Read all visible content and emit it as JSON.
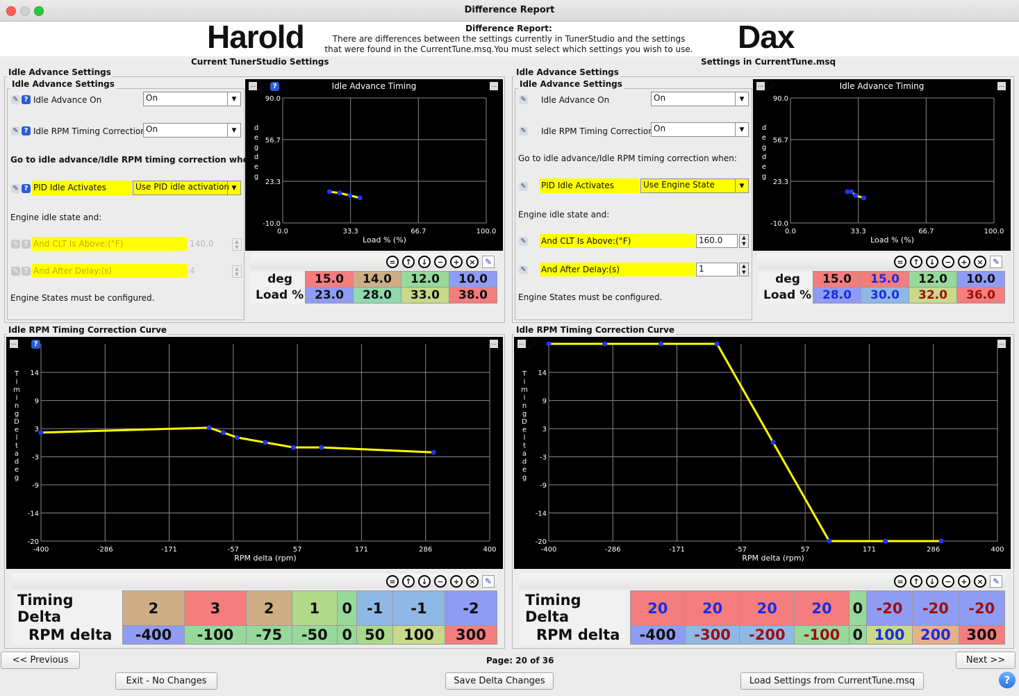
{
  "window": {
    "title": "Difference Report"
  },
  "header": {
    "left_name": "Harold",
    "right_name": "Dax",
    "title": "Difference Report:",
    "line1": "There are differences between the settings currently in TunerStudio and the settings",
    "line2": "that were found in the CurrentTune.msq.You must select which settings you wish to use.",
    "left_caption": "Current TunerStudio Settings",
    "right_caption": "Settings in CurrentTune.msq"
  },
  "left": {
    "outer_group": "Idle Advance Settings",
    "inner_group": "Idle Advance Settings",
    "idle_adv_on_label": "Idle Advance On",
    "idle_adv_on_value": "On",
    "idle_rpm_label": "Idle RPM Timing Correction",
    "idle_rpm_value": "On",
    "goto_label": "Go to idle advance/Idle RPM timing correction when:",
    "pid_label": "PID Idle Activates",
    "pid_value": "Use PID idle activation",
    "engine_idle_label": "Engine idle state and:",
    "clt_label": "And CLT Is Above:(°F)",
    "clt_value": "140.0",
    "delay_label": "And After Delay:(s)",
    "delay_value": "4",
    "must_label": "Engine States must be configured.",
    "chart_title": "Idle Advance Timing",
    "table": {
      "row1_label": "deg",
      "row1": [
        "15.0",
        "14.0",
        "12.0",
        "10.0"
      ],
      "row2_label": "Load %",
      "row2": [
        "23.0",
        "28.0",
        "33.0",
        "38.0"
      ]
    },
    "curve_group": "Idle RPM Timing Correction Curve",
    "curve_table": {
      "row1_label": "Timing Delta",
      "row1": [
        "2",
        "3",
        "2",
        "1",
        "0",
        "-1",
        "-1",
        "-2"
      ],
      "row2_label": "RPM delta",
      "row2": [
        "-400",
        "-100",
        "-75",
        "-50",
        "0",
        "50",
        "100",
        "300"
      ]
    }
  },
  "right": {
    "outer_group": "Idle Advance Settings",
    "inner_group": "Idle Advance Settings",
    "idle_adv_on_label": "Idle Advance On",
    "idle_adv_on_value": "On",
    "idle_rpm_label": "Idle RPM Timing Correction",
    "idle_rpm_value": "On",
    "goto_label": "Go to idle advance/Idle RPM timing correction when:",
    "pid_label": "PID Idle Activates",
    "pid_value": "Use Engine State",
    "engine_idle_label": "Engine idle state and:",
    "clt_label": "And CLT Is Above:(°F)",
    "clt_value": "160.0",
    "delay_label": "And After Delay:(s)",
    "delay_value": "1",
    "must_label": "Engine States must be configured.",
    "chart_title": "Idle Advance Timing",
    "table": {
      "row1_label": "deg",
      "row1": [
        "15.0",
        "15.0",
        "12.0",
        "10.0"
      ],
      "row2_label": "Load %",
      "row2": [
        "28.0",
        "30.0",
        "32.0",
        "36.0"
      ]
    },
    "curve_group": "Idle RPM Timing Correction Curve",
    "curve_table": {
      "row1_label": "Timing Delta",
      "row1": [
        "20",
        "20",
        "20",
        "20",
        "0",
        "-20",
        "-20",
        "-20"
      ],
      "row2_label": "RPM delta",
      "row2": [
        "-400",
        "-300",
        "-200",
        "-100",
        "0",
        "100",
        "200",
        "300"
      ]
    }
  },
  "chart_data": [
    {
      "type": "line",
      "title": "Idle Advance Timing",
      "xlabel": "Load % (%)",
      "ylabel": "deg deg",
      "xlim": [
        0,
        100
      ],
      "ylim": [
        -10,
        90
      ],
      "xticks": [
        "0.0",
        "33.3",
        "66.7",
        "100.0"
      ],
      "yticks": [
        "-10.0",
        "23.3",
        "56.7",
        "90.0"
      ],
      "x": [
        23,
        28,
        33,
        38
      ],
      "y": [
        15,
        14,
        12,
        10
      ]
    },
    {
      "type": "line",
      "title": "Idle Advance Timing",
      "xlabel": "Load % (%)",
      "ylabel": "deg deg",
      "xlim": [
        0,
        100
      ],
      "ylim": [
        -10,
        90
      ],
      "xticks": [
        "0.0",
        "33.3",
        "66.7",
        "100.0"
      ],
      "yticks": [
        "-10.0",
        "23.3",
        "56.7",
        "90.0"
      ],
      "x": [
        28,
        30,
        32,
        36
      ],
      "y": [
        15,
        15,
        12,
        10
      ]
    },
    {
      "type": "line",
      "title": "",
      "xlabel": "RPM delta (rpm)",
      "ylabel": "Timing Delta deg",
      "xlim": [
        -400,
        400
      ],
      "ylim": [
        -20,
        20
      ],
      "xticks": [
        "-400",
        "-286",
        "-171",
        "-57",
        "57",
        "171",
        "286",
        "400"
      ],
      "yticks": [
        "-20",
        "-14",
        "-9",
        "-3",
        "3",
        "9",
        "14"
      ],
      "x": [
        -400,
        -100,
        -75,
        -50,
        0,
        50,
        100,
        300
      ],
      "y": [
        2,
        3,
        2,
        1,
        0,
        -1,
        -1,
        -2
      ]
    },
    {
      "type": "line",
      "title": "",
      "xlabel": "RPM delta (rpm)",
      "ylabel": "Timing Delta deg",
      "xlim": [
        -400,
        400
      ],
      "ylim": [
        -20,
        20
      ],
      "xticks": [
        "-400",
        "-286",
        "-171",
        "-57",
        "57",
        "171",
        "286",
        "400"
      ],
      "yticks": [
        "-20",
        "-14",
        "-9",
        "-3",
        "3",
        "9",
        "14"
      ],
      "x": [
        -400,
        -300,
        -200,
        -100,
        0,
        100,
        200,
        300
      ],
      "y": [
        20,
        20,
        20,
        20,
        0,
        -20,
        -20,
        -20
      ]
    }
  ],
  "footer": {
    "prev": "<< Previous",
    "page": "Page: 20 of 36",
    "next": "Next >>",
    "exit": "Exit - No Changes",
    "save": "Save Delta Changes",
    "load": "Load Settings from CurrentTune.msq",
    "help": "?"
  },
  "colors": {
    "trace": "#ffff00",
    "point": "#2233ff",
    "highlight": "#ffff00"
  }
}
